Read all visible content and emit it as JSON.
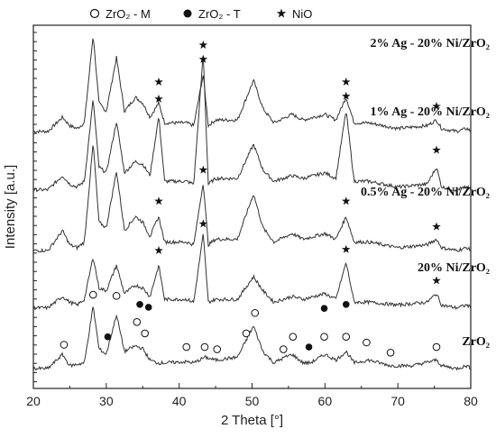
{
  "chart_data": {
    "type": "line",
    "xlabel": "2 Theta [°]",
    "ylabel": "Intensity [a.u.]",
    "xlim": [
      20,
      80
    ],
    "xticks": [
      20,
      30,
      40,
      50,
      60,
      70,
      80
    ],
    "legend": [
      {
        "name": "ZrO₂ - M",
        "marker": "open-circle"
      },
      {
        "name": "ZrO₂ - T",
        "marker": "filled-circle"
      },
      {
        "name": "NiO",
        "marker": "star"
      }
    ],
    "legend_position": "top",
    "series": [
      {
        "name": "2% Ag - 20% Ni/ZrO₂",
        "baseline": 4.18,
        "points": [
          [
            20,
            0.0
          ],
          [
            22,
            0.0
          ],
          [
            24,
            0.25
          ],
          [
            25,
            0.1
          ],
          [
            26,
            0.05
          ],
          [
            27,
            0.15
          ],
          [
            28.2,
            1.7
          ],
          [
            29,
            0.5
          ],
          [
            30,
            0.35
          ],
          [
            31.4,
            1.3
          ],
          [
            32.5,
            0.35
          ],
          [
            34,
            0.6
          ],
          [
            35,
            0.5
          ],
          [
            36,
            0.25
          ],
          [
            37.2,
            0.5
          ],
          [
            38,
            0.15
          ],
          [
            41,
            0.15
          ],
          [
            42,
            0.1
          ],
          [
            43.3,
            1.0
          ],
          [
            44,
            0.1
          ],
          [
            45,
            0.2
          ],
          [
            48,
            0.2
          ],
          [
            50.2,
            0.9
          ],
          [
            51.5,
            0.4
          ],
          [
            53,
            0.15
          ],
          [
            55.5,
            0.3
          ],
          [
            57,
            0.2
          ],
          [
            60,
            0.3
          ],
          [
            61.5,
            0.2
          ],
          [
            62.9,
            0.6
          ],
          [
            64,
            0.15
          ],
          [
            66,
            0.15
          ],
          [
            70,
            0.05
          ],
          [
            74,
            0.1
          ],
          [
            75.3,
            0.2
          ],
          [
            76,
            0.05
          ],
          [
            78,
            0.0
          ],
          [
            79.5,
            0.05
          ],
          [
            80,
            0.0
          ]
        ]
      },
      {
        "name": "1% Ag - 20% Ni/ZrO₂",
        "baseline": 3.15,
        "points": [
          [
            20,
            0.0
          ],
          [
            22,
            0.0
          ],
          [
            24,
            0.25
          ],
          [
            25,
            0.1
          ],
          [
            26,
            0.05
          ],
          [
            27,
            0.15
          ],
          [
            28.2,
            1.6
          ],
          [
            29,
            0.4
          ],
          [
            30,
            0.3
          ],
          [
            31.4,
            1.2
          ],
          [
            32.5,
            0.3
          ],
          [
            34,
            0.5
          ],
          [
            35,
            0.45
          ],
          [
            36,
            0.25
          ],
          [
            37.2,
            1.3
          ],
          [
            38,
            0.15
          ],
          [
            41,
            0.15
          ],
          [
            42,
            0.1
          ],
          [
            43.3,
            2.4
          ],
          [
            44,
            0.1
          ],
          [
            45,
            0.2
          ],
          [
            48,
            0.2
          ],
          [
            50.2,
            0.8
          ],
          [
            51.5,
            0.35
          ],
          [
            53,
            0.15
          ],
          [
            55.5,
            0.25
          ],
          [
            57,
            0.2
          ],
          [
            60,
            0.3
          ],
          [
            61.5,
            0.2
          ],
          [
            62.9,
            1.4
          ],
          [
            64,
            0.15
          ],
          [
            66,
            0.15
          ],
          [
            70,
            0.05
          ],
          [
            74,
            0.1
          ],
          [
            75.3,
            0.4
          ],
          [
            76,
            0.05
          ],
          [
            78,
            0.0
          ],
          [
            79.5,
            0.05
          ],
          [
            80,
            0.0
          ]
        ]
      },
      {
        "name": "0.5% Ag - 20% Ni/ZrO₂",
        "baseline": 2.08,
        "points": [
          [
            20,
            0.0
          ],
          [
            22,
            0.0
          ],
          [
            24,
            0.35
          ],
          [
            25,
            0.1
          ],
          [
            26,
            0.05
          ],
          [
            27,
            0.15
          ],
          [
            28.2,
            1.9
          ],
          [
            29,
            0.5
          ],
          [
            30,
            0.4
          ],
          [
            31.4,
            1.4
          ],
          [
            32.5,
            0.35
          ],
          [
            34,
            0.6
          ],
          [
            35,
            0.5
          ],
          [
            36,
            0.25
          ],
          [
            37.2,
            0.6
          ],
          [
            38,
            0.15
          ],
          [
            41,
            0.15
          ],
          [
            42,
            0.1
          ],
          [
            43.3,
            1.2
          ],
          [
            44,
            0.1
          ],
          [
            45,
            0.2
          ],
          [
            48,
            0.2
          ],
          [
            50.2,
            1.0
          ],
          [
            51.5,
            0.4
          ],
          [
            53,
            0.15
          ],
          [
            55.5,
            0.3
          ],
          [
            57,
            0.2
          ],
          [
            60,
            0.3
          ],
          [
            61.5,
            0.2
          ],
          [
            62.9,
            0.6
          ],
          [
            64,
            0.15
          ],
          [
            66,
            0.15
          ],
          [
            70,
            0.05
          ],
          [
            74,
            0.1
          ],
          [
            75.3,
            0.2
          ],
          [
            76,
            0.05
          ],
          [
            78,
            0.0
          ],
          [
            79.5,
            0.05
          ],
          [
            80,
            0.0
          ]
        ]
      },
      {
        "name": "20% Ni/ZrO₂",
        "baseline": 1.07,
        "points": [
          [
            20,
            0.0
          ],
          [
            22,
            0.0
          ],
          [
            24,
            0.2
          ],
          [
            25,
            0.1
          ],
          [
            26,
            0.05
          ],
          [
            27,
            0.15
          ],
          [
            28.2,
            0.9
          ],
          [
            29,
            0.35
          ],
          [
            30,
            0.3
          ],
          [
            31.4,
            0.75
          ],
          [
            32.5,
            0.25
          ],
          [
            34,
            0.4
          ],
          [
            35,
            0.35
          ],
          [
            36,
            0.2
          ],
          [
            37.2,
            0.75
          ],
          [
            38,
            0.15
          ],
          [
            41,
            0.15
          ],
          [
            42,
            0.1
          ],
          [
            43.3,
            1.3
          ],
          [
            44,
            0.1
          ],
          [
            45,
            0.15
          ],
          [
            48,
            0.15
          ],
          [
            50.2,
            0.55
          ],
          [
            51.5,
            0.3
          ],
          [
            53,
            0.1
          ],
          [
            55.5,
            0.2
          ],
          [
            57,
            0.15
          ],
          [
            60,
            0.25
          ],
          [
            61.5,
            0.15
          ],
          [
            62.9,
            0.8
          ],
          [
            64,
            0.1
          ],
          [
            66,
            0.1
          ],
          [
            70,
            0.05
          ],
          [
            74,
            0.1
          ],
          [
            75.3,
            0.25
          ],
          [
            76,
            0.05
          ],
          [
            78,
            0.0
          ],
          [
            79.5,
            0.05
          ],
          [
            80,
            0.0
          ]
        ]
      },
      {
        "name": "ZrO₂",
        "baseline": 0.0,
        "points": [
          [
            20,
            0.0
          ],
          [
            22,
            0.0
          ],
          [
            24,
            0.25
          ],
          [
            25,
            0.05
          ],
          [
            27,
            0.1
          ],
          [
            28.2,
            1.1
          ],
          [
            29,
            0.35
          ],
          [
            30,
            0.25
          ],
          [
            31.4,
            0.95
          ],
          [
            32.5,
            0.3
          ],
          [
            34,
            0.4
          ],
          [
            35,
            0.35
          ],
          [
            36,
            0.15
          ],
          [
            37,
            0.1
          ],
          [
            38,
            0.1
          ],
          [
            41,
            0.12
          ],
          [
            42,
            0.1
          ],
          [
            43.5,
            0.2
          ],
          [
            45,
            0.15
          ],
          [
            48,
            0.2
          ],
          [
            50.2,
            0.75
          ],
          [
            51.5,
            0.3
          ],
          [
            53,
            0.1
          ],
          [
            54.5,
            0.2
          ],
          [
            55.5,
            0.25
          ],
          [
            57,
            0.1
          ],
          [
            58,
            0.1
          ],
          [
            60,
            0.25
          ],
          [
            61.5,
            0.15
          ],
          [
            62.9,
            0.3
          ],
          [
            64,
            0.1
          ],
          [
            66,
            0.15
          ],
          [
            69,
            0.05
          ],
          [
            72,
            0.05
          ],
          [
            75.3,
            0.15
          ],
          [
            76,
            0.05
          ],
          [
            78,
            0.0
          ],
          [
            79.5,
            0.05
          ],
          [
            80,
            0.0
          ]
        ]
      }
    ],
    "markers": [
      {
        "type": "star",
        "x": 37.2,
        "y": 5.05
      },
      {
        "type": "star",
        "x": 43.3,
        "y": 5.45
      },
      {
        "type": "star",
        "x": 62.9,
        "y": 5.05
      },
      {
        "type": "star",
        "x": 75.3,
        "y": 4.62
      },
      {
        "type": "star",
        "x": 37.2,
        "y": 4.75
      },
      {
        "type": "star",
        "x": 43.3,
        "y": 5.7
      },
      {
        "type": "star",
        "x": 62.9,
        "y": 4.8
      },
      {
        "type": "star",
        "x": 75.3,
        "y": 3.85
      },
      {
        "type": "star",
        "x": 37.2,
        "y": 2.95
      },
      {
        "type": "star",
        "x": 43.3,
        "y": 3.5
      },
      {
        "type": "star",
        "x": 62.9,
        "y": 2.95
      },
      {
        "type": "star",
        "x": 75.3,
        "y": 2.5
      },
      {
        "type": "star",
        "x": 37.2,
        "y": 2.08
      },
      {
        "type": "star",
        "x": 43.3,
        "y": 2.55
      },
      {
        "type": "star",
        "x": 62.9,
        "y": 2.1
      },
      {
        "type": "star",
        "x": 75.3,
        "y": 1.55
      },
      {
        "type": "open-circle",
        "x": 24.2,
        "y": 0.42
      },
      {
        "type": "open-circle",
        "x": 28.2,
        "y": 1.3
      },
      {
        "type": "open-circle",
        "x": 31.4,
        "y": 1.28
      },
      {
        "type": "open-circle",
        "x": 34.2,
        "y": 0.82
      },
      {
        "type": "open-circle",
        "x": 35.3,
        "y": 0.62
      },
      {
        "type": "open-circle",
        "x": 41.0,
        "y": 0.38
      },
      {
        "type": "open-circle",
        "x": 43.5,
        "y": 0.38
      },
      {
        "type": "open-circle",
        "x": 45.2,
        "y": 0.34
      },
      {
        "type": "open-circle",
        "x": 49.2,
        "y": 0.62
      },
      {
        "type": "open-circle",
        "x": 50.4,
        "y": 0.98
      },
      {
        "type": "open-circle",
        "x": 54.3,
        "y": 0.34
      },
      {
        "type": "open-circle",
        "x": 55.6,
        "y": 0.56
      },
      {
        "type": "open-circle",
        "x": 59.9,
        "y": 0.56
      },
      {
        "type": "open-circle",
        "x": 62.9,
        "y": 0.56
      },
      {
        "type": "open-circle",
        "x": 65.7,
        "y": 0.46
      },
      {
        "type": "open-circle",
        "x": 69.0,
        "y": 0.28
      },
      {
        "type": "open-circle",
        "x": 75.3,
        "y": 0.38
      },
      {
        "type": "filled-circle",
        "x": 30.2,
        "y": 0.56
      },
      {
        "type": "filled-circle",
        "x": 34.6,
        "y": 1.13
      },
      {
        "type": "filled-circle",
        "x": 35.8,
        "y": 1.08
      },
      {
        "type": "filled-circle",
        "x": 57.8,
        "y": 0.38
      },
      {
        "type": "filled-circle",
        "x": 59.9,
        "y": 1.06
      },
      {
        "type": "filled-circle",
        "x": 62.9,
        "y": 1.13
      }
    ]
  }
}
